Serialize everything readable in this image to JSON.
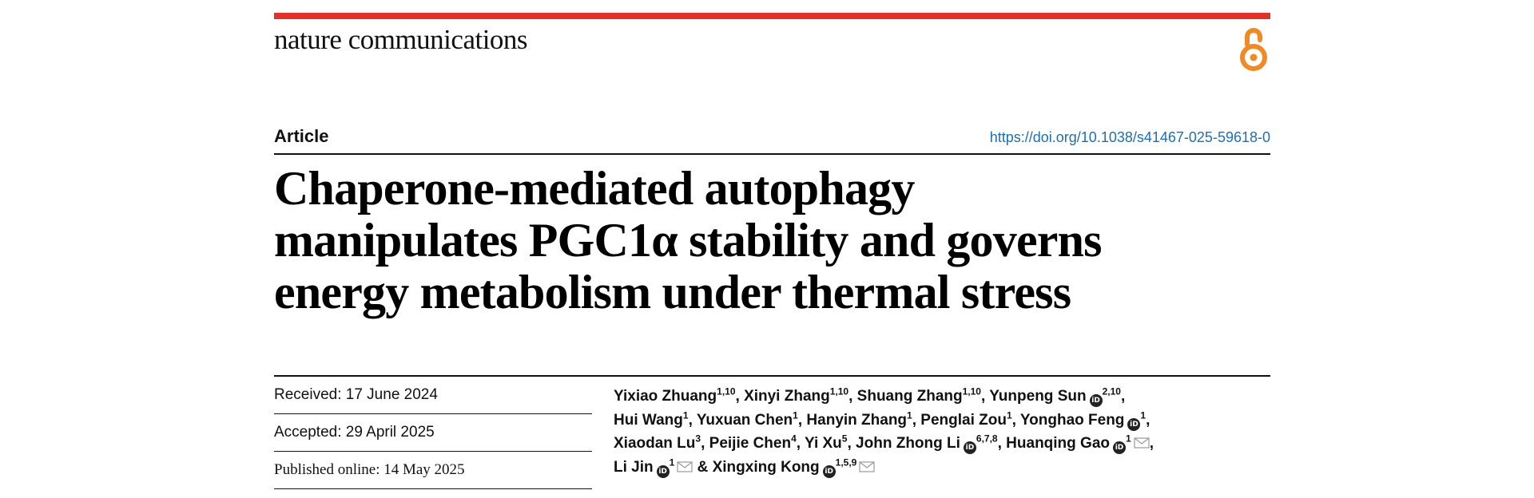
{
  "header": {
    "journal": "nature communications",
    "accent_color": "#e2302b",
    "open_access_icon": "open-access-icon",
    "open_access_color": "#f08a24"
  },
  "article": {
    "type_label": "Article",
    "doi": "https://doi.org/10.1038/s41467-025-59618-0",
    "doi_color": "#1f6fb0",
    "title_lines": [
      "Chaperone-mediated autophagy",
      "manipulates PGC1α stability and governs",
      "energy metabolism under thermal stress"
    ]
  },
  "dates": {
    "received": "Received: 17 June 2024",
    "accepted": "Accepted: 29 April 2025",
    "published": "Published online: 14 May 2025"
  },
  "authors": [
    {
      "name": "Yixiao Zhuang",
      "aff": "1,10",
      "orcid": false,
      "mail": false
    },
    {
      "name": "Xinyi Zhang",
      "aff": "1,10",
      "orcid": false,
      "mail": false
    },
    {
      "name": "Shuang Zhang",
      "aff": "1,10",
      "orcid": false,
      "mail": false
    },
    {
      "name": "Yunpeng Sun",
      "aff": "2,10",
      "orcid": true,
      "mail": false
    },
    {
      "name": "Hui Wang",
      "aff": "1",
      "orcid": false,
      "mail": false
    },
    {
      "name": "Yuxuan Chen",
      "aff": "1",
      "orcid": false,
      "mail": false
    },
    {
      "name": "Hanyin Zhang",
      "aff": "1",
      "orcid": false,
      "mail": false
    },
    {
      "name": "Penglai Zou",
      "aff": "1",
      "orcid": false,
      "mail": false
    },
    {
      "name": "Yonghao Feng",
      "aff": "1",
      "orcid": true,
      "mail": false
    },
    {
      "name": "Xiaodan Lu",
      "aff": "3",
      "orcid": false,
      "mail": false
    },
    {
      "name": "Peijie Chen",
      "aff": "4",
      "orcid": false,
      "mail": false
    },
    {
      "name": "Yi Xu",
      "aff": "5",
      "orcid": false,
      "mail": false
    },
    {
      "name": "John Zhong Li",
      "aff": "6,7,8",
      "orcid": true,
      "mail": false
    },
    {
      "name": "Huanqing Gao",
      "aff": "1",
      "orcid": true,
      "mail": true
    },
    {
      "name": "Li Jin",
      "aff": "1",
      "orcid": true,
      "mail": true
    },
    {
      "name": "Xingxing Kong",
      "aff": "1,5,9",
      "orcid": true,
      "mail": true
    }
  ],
  "orcid_label": "iD"
}
